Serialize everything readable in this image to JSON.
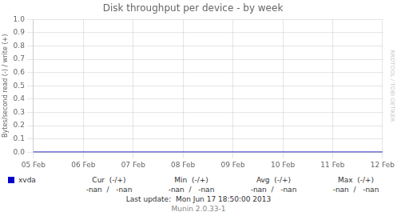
{
  "chart_data": {
    "type": "line",
    "title": "Disk throughput per device - by week",
    "y_label": "Bytes/second read (-) / write (+)",
    "categories": [
      "05 Feb",
      "06 Feb",
      "07 Feb",
      "08 Feb",
      "09 Feb",
      "10 Feb",
      "11 Feb",
      "12 Feb"
    ],
    "series": [
      {
        "name": "xvda",
        "color": "#0000cc",
        "values": [
          0,
          0,
          0,
          0,
          0,
          0,
          0,
          0
        ]
      }
    ],
    "ylim": [
      0.0,
      1.0
    ],
    "yticks": [
      {
        "value": 0.0,
        "label": "0.0"
      },
      0.1,
      0.2,
      0.3,
      0.4,
      0.5,
      0.6,
      0.7,
      0.8,
      0.9,
      {
        "value": 1.0,
        "label": "1.0"
      }
    ],
    "grid": true,
    "legend": "bottom",
    "annotations": [
      "Cur  (-/+)",
      "Min  (-/+)",
      "Avg  (-/+)",
      "Max  (-/+)",
      "-nan  /   -nan",
      "-nan  /   -nan",
      "-nan  /   -nan",
      "-nan  /   -nan",
      "Last update:  Mon Jun 17 18:50:00 2013",
      "Munin 2.0.33-1",
      "RRDTOOL / TOBI OETIKER"
    ]
  }
}
